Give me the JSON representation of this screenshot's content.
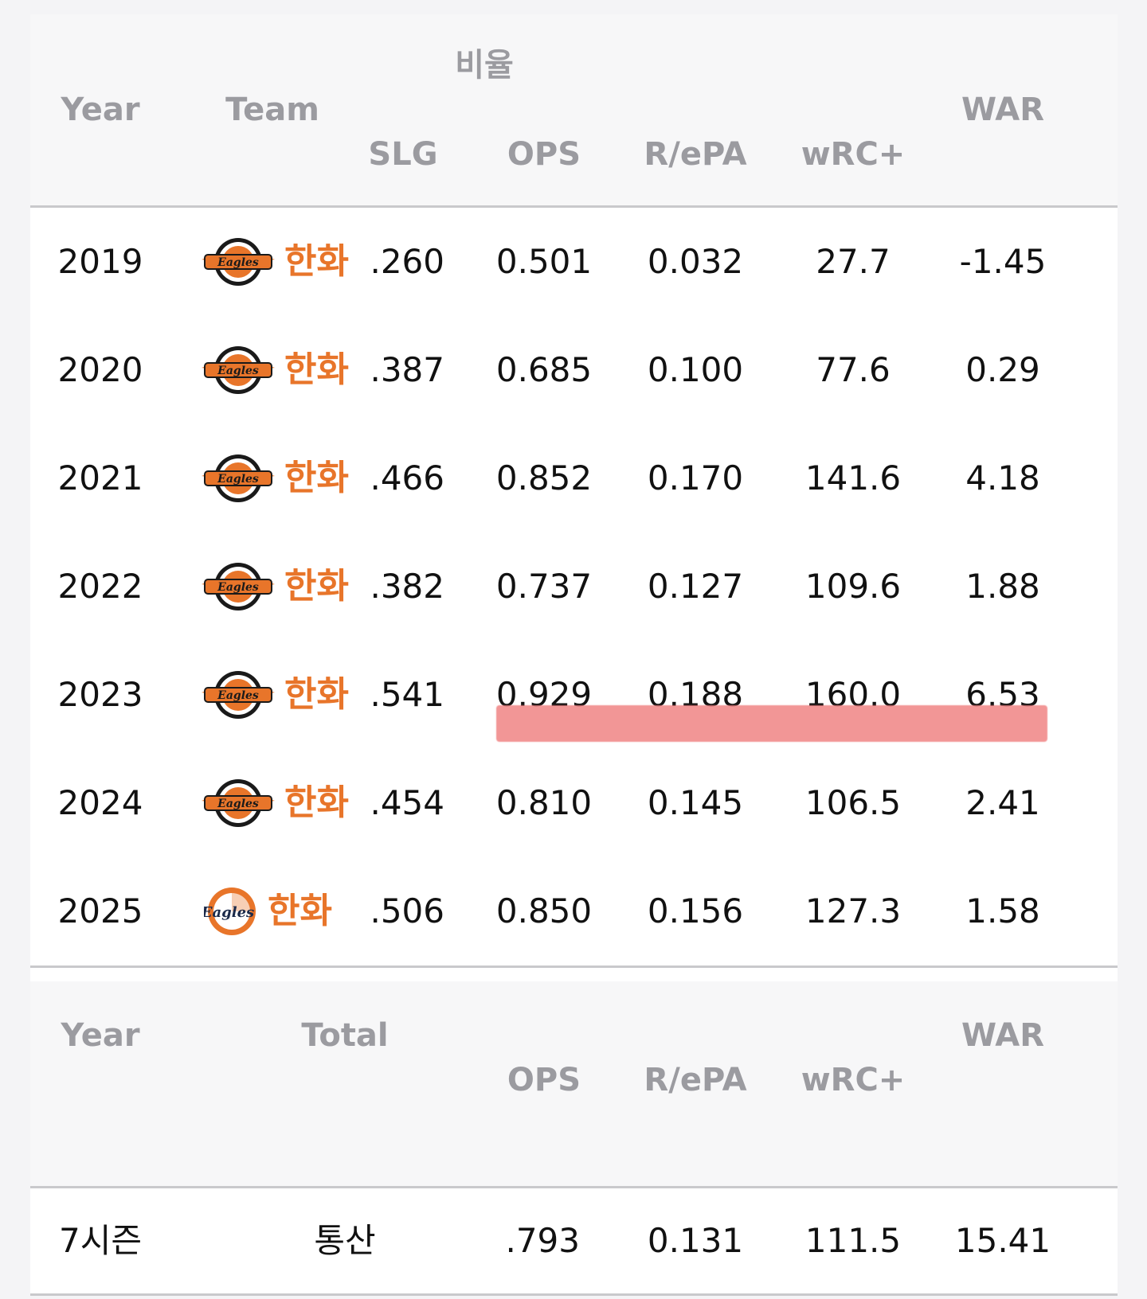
{
  "table": {
    "group_header": "비율",
    "headers": {
      "year": "Year",
      "team": "Team",
      "slg": "SLG",
      "ops": "OPS",
      "repa": "R/ePA",
      "wrc": "wRC+",
      "war": "WAR"
    },
    "rows": [
      {
        "year": "2019",
        "team": "한화",
        "slg": ".260",
        "ops": "0.501",
        "repa": "0.032",
        "wrc": "27.7",
        "war": "-1.45"
      },
      {
        "year": "2020",
        "team": "한화",
        "slg": ".387",
        "ops": "0.685",
        "repa": "0.100",
        "wrc": "77.6",
        "war": "0.29"
      },
      {
        "year": "2021",
        "team": "한화",
        "slg": ".466",
        "ops": "0.852",
        "repa": "0.170",
        "wrc": "141.6",
        "war": "4.18"
      },
      {
        "year": "2022",
        "team": "한화",
        "slg": ".382",
        "ops": "0.737",
        "repa": "0.127",
        "wrc": "109.6",
        "war": "1.88"
      },
      {
        "year": "2023",
        "team": "한화",
        "slg": ".541",
        "ops": "0.929",
        "repa": "0.188",
        "wrc": "160.0",
        "war": "6.53"
      },
      {
        "year": "2024",
        "team": "한화",
        "slg": ".454",
        "ops": "0.810",
        "repa": "0.145",
        "wrc": "106.5",
        "war": "2.41"
      },
      {
        "year": "2025",
        "team": "한화",
        "slg": ".506",
        "ops": "0.850",
        "repa": "0.156",
        "wrc": "127.3",
        "war": "1.58"
      }
    ],
    "highlight_color": "#f08080",
    "team_color": "#e8752a"
  },
  "totals": {
    "headers": {
      "year": "Year",
      "total": "Total",
      "ops": "OPS",
      "repa": "R/ePA",
      "wrc": "wRC+",
      "war": "WAR"
    },
    "row": {
      "year": "7시즌",
      "total": "통산",
      "ops": ".793",
      "repa": "0.131",
      "wrc": "111.5",
      "war": "15.41"
    }
  },
  "icons": {
    "old_logo": "eagles-logo-icon",
    "new_logo": "eagles-new-logo-icon"
  }
}
